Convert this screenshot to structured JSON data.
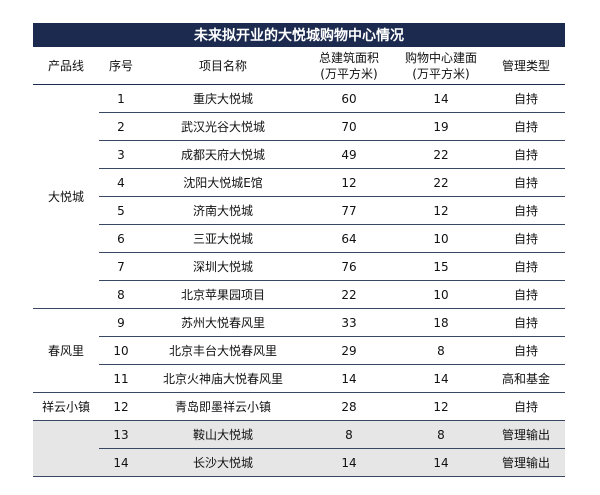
{
  "table": {
    "title": "未来拟开业的大悦城购物中心情况",
    "headers": {
      "c1": "产品线",
      "c2": "序号",
      "c3": "项目名称",
      "c4_line1": "总建筑面积",
      "c4_line2": "(万平方米)",
      "c5_line1": "购物中心建面",
      "c5_line2": "(万平方米)",
      "c6": "管理类型"
    },
    "groups": [
      {
        "label": "大悦城"
      },
      {
        "label": "春风里"
      },
      {
        "label": "祥云小镇"
      },
      {
        "label": ""
      }
    ],
    "rows": [
      {
        "no": "1",
        "name": "重庆大悦城",
        "total": "60",
        "mall": "14",
        "type": "自持"
      },
      {
        "no": "2",
        "name": "武汉光谷大悦城",
        "total": "70",
        "mall": "19",
        "type": "自持"
      },
      {
        "no": "3",
        "name": "成都天府大悦城",
        "total": "49",
        "mall": "22",
        "type": "自持"
      },
      {
        "no": "4",
        "name": "沈阳大悦城E馆",
        "total": "12",
        "mall": "22",
        "type": "自持"
      },
      {
        "no": "5",
        "name": "济南大悦城",
        "total": "77",
        "mall": "12",
        "type": "自持"
      },
      {
        "no": "6",
        "name": "三亚大悦城",
        "total": "64",
        "mall": "10",
        "type": "自持"
      },
      {
        "no": "7",
        "name": "深圳大悦城",
        "total": "76",
        "mall": "15",
        "type": "自持"
      },
      {
        "no": "8",
        "name": "北京苹果园项目",
        "total": "22",
        "mall": "10",
        "type": "自持"
      },
      {
        "no": "9",
        "name": "苏州大悦春风里",
        "total": "33",
        "mall": "18",
        "type": "自持"
      },
      {
        "no": "10",
        "name": "北京丰台大悦春风里",
        "total": "29",
        "mall": "8",
        "type": "自持"
      },
      {
        "no": "11",
        "name": "北京火神庙大悦春风里",
        "total": "14",
        "mall": "14",
        "type": "高和基金"
      },
      {
        "no": "12",
        "name": "青岛即墨祥云小镇",
        "total": "28",
        "mall": "12",
        "type": "自持"
      },
      {
        "no": "13",
        "name": "鞍山大悦城",
        "total": "8",
        "mall": "8",
        "type": "管理输出"
      },
      {
        "no": "14",
        "name": "长沙大悦城",
        "total": "14",
        "mall": "14",
        "type": "管理输出"
      }
    ]
  }
}
